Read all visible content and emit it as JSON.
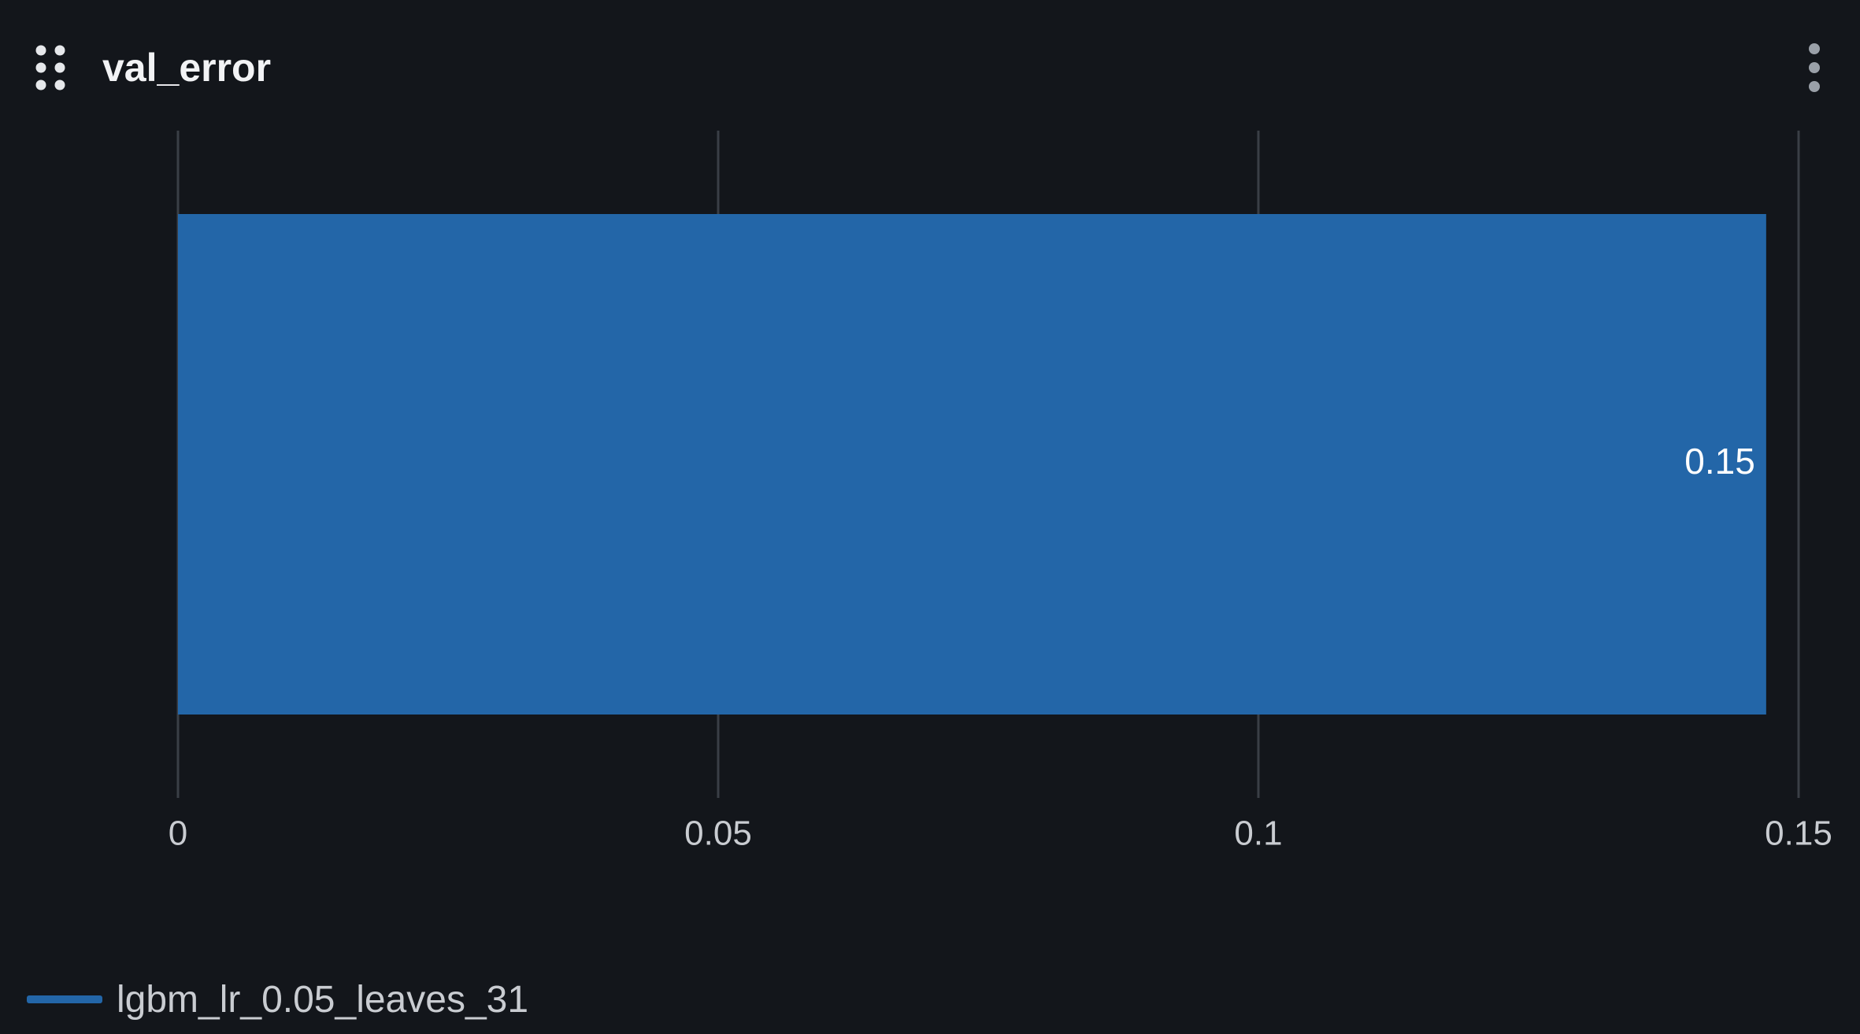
{
  "panel": {
    "title": "val_error",
    "drag_icon": "drag-handle-icon",
    "menu_icon": "more-vertical-icon"
  },
  "colors": {
    "background": "#13161b",
    "bar": "#2366a8",
    "grid": "#3a3f46",
    "tick_text": "#c9ccd1",
    "value_label": "#ffffff"
  },
  "chart_data": {
    "type": "bar",
    "orientation": "horizontal",
    "xlim": [
      0,
      0.15
    ],
    "xticks": [
      0,
      0.05,
      0.1,
      0.15
    ],
    "xtick_labels": [
      "0",
      "0.05",
      "0.1",
      "0.15"
    ],
    "grid": true,
    "legend_position": "bottom-left",
    "series": [
      {
        "name": "lgbm_lr_0.05_leaves_31",
        "color": "#2366a8",
        "values": [
          0.147
        ],
        "value_labels": [
          "0.15"
        ]
      }
    ]
  }
}
